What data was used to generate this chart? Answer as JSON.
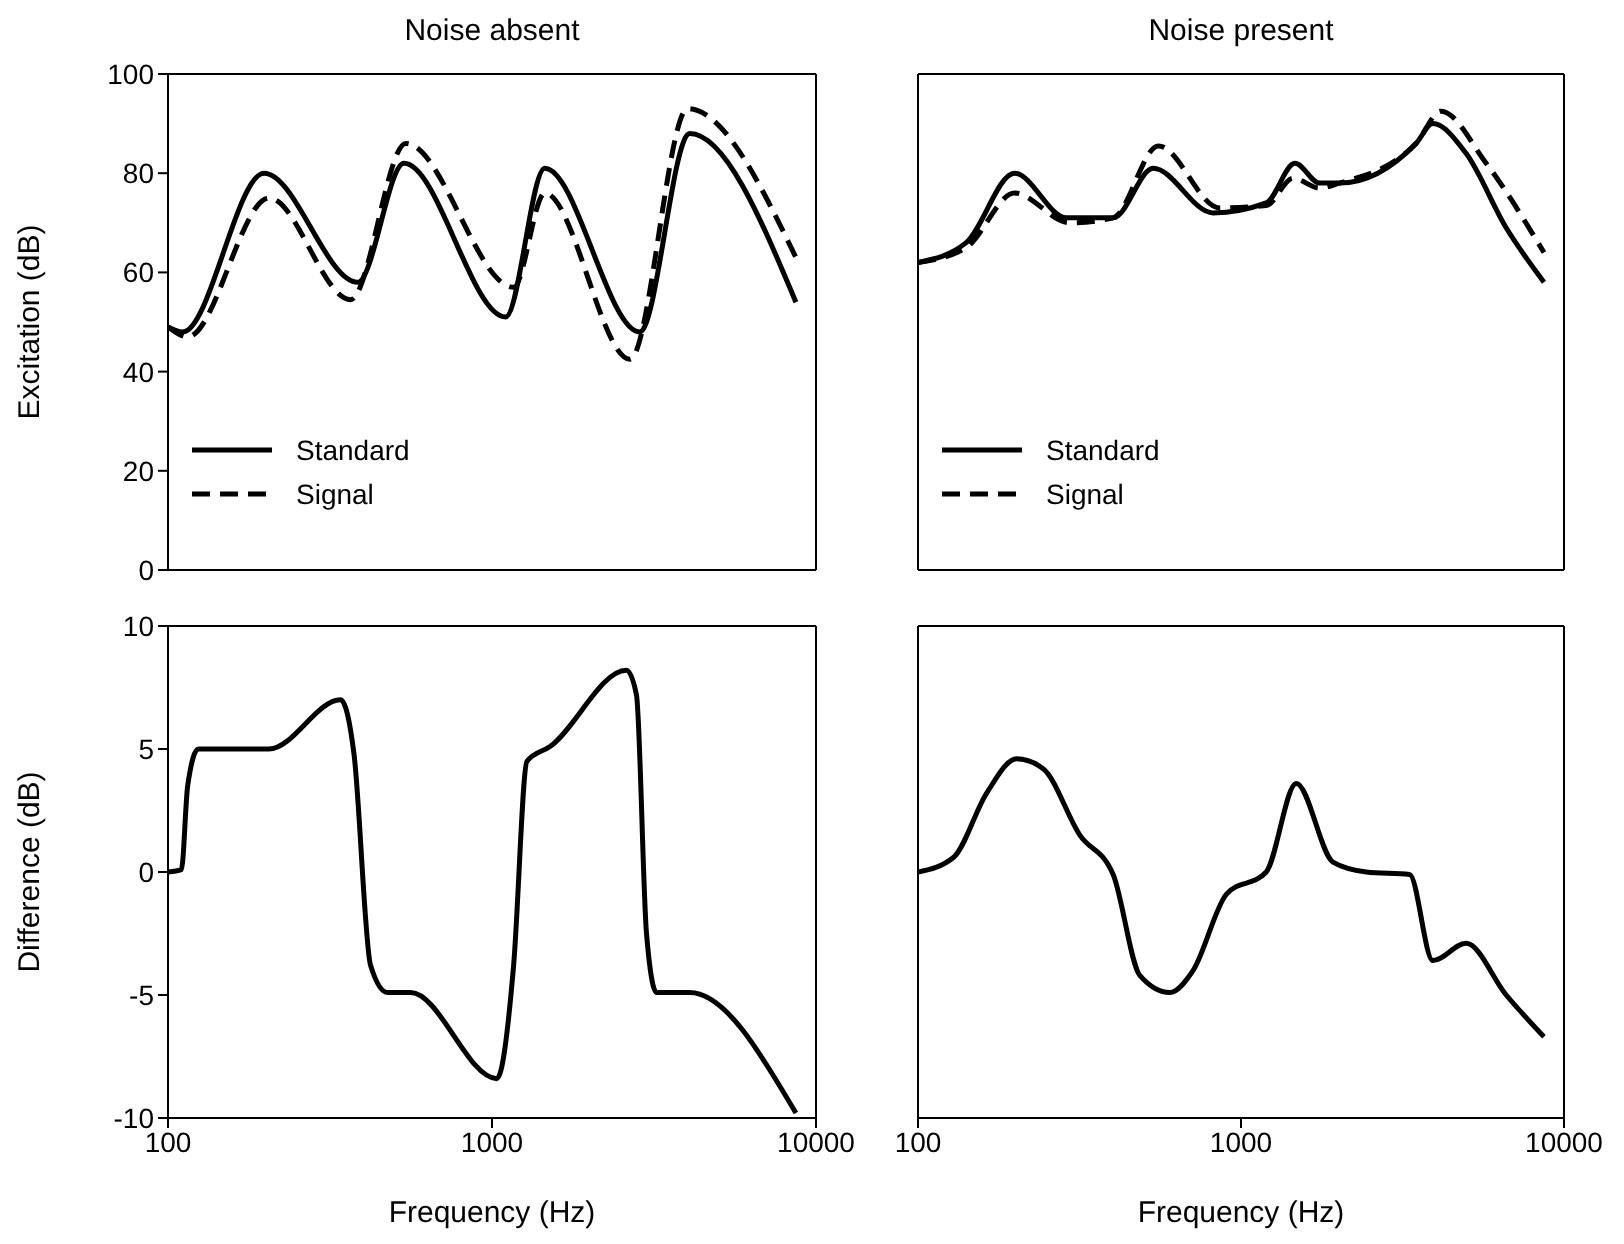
{
  "chart_data": [
    {
      "type": "line",
      "title": "Noise absent",
      "ylabel": "Excitation (dB)",
      "log": "x",
      "xlim": [
        100,
        10000
      ],
      "xticks": [
        100,
        1000,
        10000
      ],
      "ylim": [
        0,
        100
      ],
      "yticks": [
        0,
        20,
        40,
        60,
        80,
        100
      ],
      "tick_labels": "y",
      "legend": "bottom left",
      "series": [
        {
          "name": "Standard",
          "color": "#000000",
          "line_style": "solid",
          "x": [
            100,
            111,
            198,
            385,
            535,
            1102,
            1455,
            2858,
            4074,
            8670
          ],
          "values": [
            49,
            48,
            80,
            58,
            82,
            51,
            81,
            48,
            88,
            54
          ]
        },
        {
          "name": "Signal",
          "color": "#000000",
          "line_style": "dashed",
          "x": [
            100,
            115,
            205,
            366,
            542,
            1166,
            1455,
            2667,
            4018,
            8670
          ],
          "values": [
            49,
            47,
            75,
            54.5,
            86,
            57,
            76,
            42.5,
            93,
            63
          ]
        }
      ]
    },
    {
      "type": "line",
      "title": "Noise present",
      "log": "x",
      "xlim": [
        100,
        10000
      ],
      "xticks": [
        100,
        1000,
        10000
      ],
      "ylim": [
        0,
        100
      ],
      "yticks": [
        0,
        20,
        40,
        60,
        80,
        100
      ],
      "tick_labels": false,
      "legend": "bottom left",
      "series": [
        {
          "name": "Standard",
          "color": "#000000",
          "line_style": "solid",
          "x": [
            100,
            141,
            199,
            288,
            402,
            535,
            819,
            1197,
            1469,
            1750,
            2018,
            3483,
            3923,
            4975,
            6622,
            8670
          ],
          "values": [
            62,
            66,
            80,
            71,
            71,
            81,
            72,
            74,
            82,
            78,
            78,
            86,
            90,
            84,
            69,
            58
          ]
        },
        {
          "name": "Signal",
          "color": "#000000",
          "line_style": "dashed",
          "x": [
            100,
            141,
            199,
            295,
            402,
            555,
            859,
            1197,
            1449,
            1750,
            2018,
            3483,
            4159,
            5741,
            8670
          ],
          "values": [
            62,
            65,
            76,
            70,
            71,
            85.5,
            73,
            73.5,
            79,
            77,
            78,
            86,
            92.5,
            82,
            64
          ]
        }
      ]
    },
    {
      "type": "line",
      "xlabel": "Frequency (Hz)",
      "ylabel": "Difference (dB)",
      "log": "x",
      "xlim": [
        100,
        10000
      ],
      "xticks": [
        100,
        1000,
        10000
      ],
      "ylim": [
        -10,
        10
      ],
      "yticks": [
        -10,
        -5,
        0,
        5,
        10
      ],
      "series": [
        {
          "color": "#000000",
          "line_style": "solid",
          "x": [
            100,
            110,
            115,
            124,
            205,
            341,
            375,
            422,
            476,
            561,
            1035,
            1166,
            1282,
            1511,
            2600,
            2792,
            2998,
            3220,
            4074,
            8670
          ],
          "values": [
            0,
            0.1,
            3.5,
            5,
            5,
            7,
            4.8,
            -3.8,
            -4.9,
            -4.9,
            -8.4,
            -3.8,
            4.5,
            5.1,
            8.2,
            7.2,
            -2.5,
            -4.9,
            -4.9,
            -9.8
          ]
        }
      ]
    },
    {
      "type": "line",
      "xlabel": "Frequency (Hz)",
      "log": "x",
      "xlim": [
        100,
        10000
      ],
      "xticks": [
        100,
        1000,
        10000
      ],
      "ylim": [
        -10,
        10
      ],
      "yticks": [
        -10,
        -5,
        0,
        5,
        10
      ],
      "tick_labels": "x",
      "series": [
        {
          "color": "#000000",
          "line_style": "solid",
          "x": [
            100,
            129,
            163,
            202,
            244,
            317,
            402,
            486,
            602,
            711,
            902,
            1197,
            1483,
            1927,
            2443,
            3327,
            3926,
            4975,
            6622,
            8670
          ],
          "values": [
            0,
            0.6,
            3.2,
            4.6,
            4.2,
            1.5,
            -0.1,
            -4.2,
            -4.9,
            -4,
            -0.9,
            0,
            3.6,
            0.4,
            0,
            -0.1,
            -3.6,
            -2.9,
            -5,
            -6.7
          ]
        }
      ]
    }
  ]
}
